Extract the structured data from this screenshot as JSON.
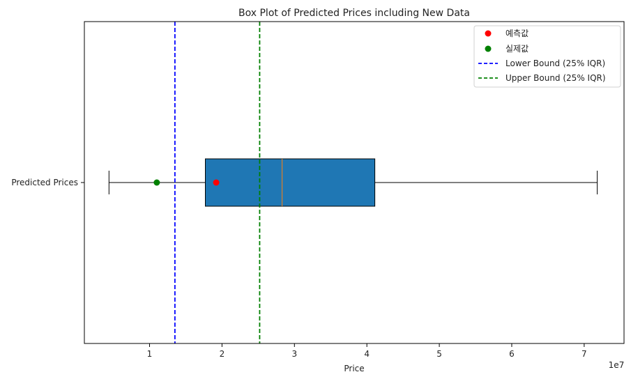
{
  "chart_data": {
    "type": "box",
    "title": "Box Plot of Predicted Prices including New Data",
    "xlabel": "Price",
    "ylabel": "",
    "x_tick_labels": [
      "1",
      "2",
      "3",
      "4",
      "5",
      "6",
      "7"
    ],
    "x_ticks": [
      10000000,
      20000000,
      30000000,
      40000000,
      50000000,
      60000000,
      70000000
    ],
    "x_offset_label": "1e7",
    "xlim": [
      1000000,
      75500000
    ],
    "category": "Predicted Prices",
    "box": {
      "whisker_low": 4400000,
      "q1": 17700000,
      "median": 28300000,
      "q3": 41100000,
      "whisker_high": 71800000,
      "fill": "#1f77b4",
      "median_color": "#ff7f0e"
    },
    "points": [
      {
        "name": "예측값",
        "value": 19200000,
        "color": "#ff0000"
      },
      {
        "name": "실제값",
        "value": 11000000,
        "color": "#008000"
      }
    ],
    "vlines": [
      {
        "name": "Lower Bound (25% IQR)",
        "value": 13500000,
        "color": "#0000ff"
      },
      {
        "name": "Upper Bound (25% IQR)",
        "value": 25200000,
        "color": "#008000"
      }
    ],
    "legend_position": "top-right",
    "grid": false
  }
}
